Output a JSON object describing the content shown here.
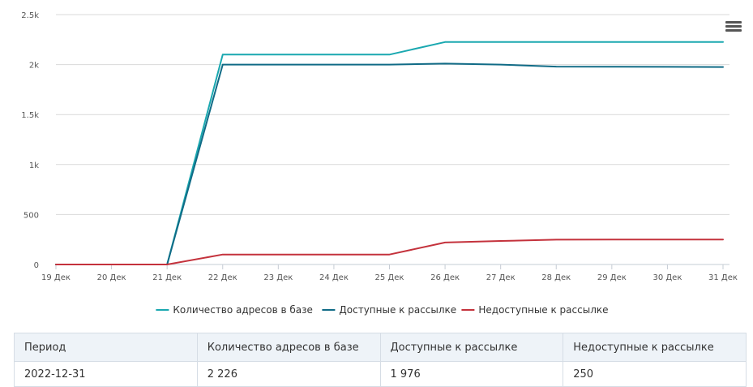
{
  "menu_icon": "hamburger-menu-icon",
  "chart_data": {
    "type": "line",
    "categories": [
      "19 Дек",
      "20 Дек",
      "21 Дек",
      "22 Дек",
      "23 Дек",
      "24 Дек",
      "25 Дек",
      "26 Дек",
      "27 Дек",
      "28 Дек",
      "29 Дек",
      "30 Дек",
      "31 Дек"
    ],
    "ylim": [
      0,
      2500
    ],
    "yticks": [
      0,
      500,
      1000,
      1500,
      2000,
      2500
    ],
    "ytick_labels": [
      "0",
      "500",
      "1k",
      "1.5k",
      "2k",
      "2.5k"
    ],
    "grid": true,
    "legend_position": "bottom-center",
    "series": [
      {
        "name": "Количество адресов в базе",
        "color": "#1aa8b0",
        "values": [
          0,
          0,
          0,
          2100,
          2100,
          2100,
          2100,
          2226,
          2226,
          2226,
          2226,
          2226,
          2226
        ]
      },
      {
        "name": "Доступные к рассылке",
        "color": "#106b86",
        "values": [
          0,
          0,
          0,
          2000,
          2000,
          2000,
          2000,
          2010,
          2000,
          1980,
          1978,
          1977,
          1976
        ]
      },
      {
        "name": "Недоступные к рассылке",
        "color": "#c4323c",
        "values": [
          0,
          0,
          0,
          100,
          100,
          100,
          100,
          220,
          235,
          248,
          249,
          250,
          250
        ]
      }
    ]
  },
  "table": {
    "headers": [
      "Период",
      "Количество адресов в базе",
      "Доступные к рассылке",
      "Недоступные к рассылке"
    ],
    "rows": [
      [
        "2022-12-31",
        "2 226",
        "1 976",
        "250"
      ]
    ]
  }
}
